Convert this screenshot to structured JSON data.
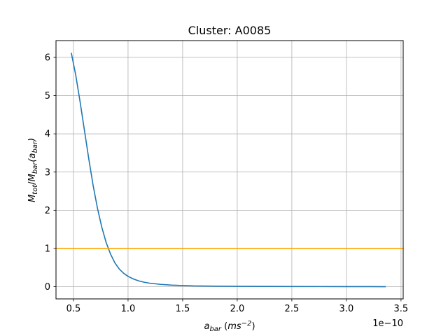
{
  "chart_data": {
    "type": "line",
    "title": "Cluster: A0085",
    "xlabel": {
      "base": "a",
      "sub": "bar",
      "unit_pre": " (",
      "unit_main": "ms",
      "unit_sup": "−2",
      "unit_post": ")"
    },
    "ylabel": {
      "m1": "M",
      "s1": "tot",
      "slash": "/",
      "m2": "M",
      "s2": "bar",
      "arg_open": "(a",
      "s3": "bar",
      "arg_close": ")"
    },
    "x_offset_text": "1e−10",
    "x_scale": 1e-10,
    "xlim": [
      0.34,
      3.52
    ],
    "ylim": [
      -0.32,
      6.44
    ],
    "xticks": [
      0.5,
      1.0,
      1.5,
      2.0,
      2.5,
      3.0,
      3.5
    ],
    "xtick_labels": [
      "0.5",
      "1.0",
      "1.5",
      "2.0",
      "2.5",
      "3.0",
      "3.5"
    ],
    "yticks": [
      0,
      1,
      2,
      3,
      4,
      5,
      6
    ],
    "ytick_labels": [
      "0",
      "1",
      "2",
      "3",
      "4",
      "5",
      "6"
    ],
    "grid": true,
    "series": [
      {
        "color": "#1f77b4",
        "x": [
          0.48,
          0.52,
          0.56,
          0.6,
          0.64,
          0.68,
          0.72,
          0.76,
          0.8,
          0.84,
          0.88,
          0.92,
          0.96,
          1.0,
          1.05,
          1.1,
          1.15,
          1.2,
          1.3,
          1.4,
          1.5,
          1.6,
          1.8,
          2.0,
          2.25,
          2.5,
          2.75,
          3.0,
          3.2,
          3.36
        ],
        "y": [
          6.12,
          5.55,
          4.85,
          4.1,
          3.35,
          2.65,
          2.05,
          1.55,
          1.15,
          0.85,
          0.62,
          0.46,
          0.35,
          0.27,
          0.2,
          0.15,
          0.115,
          0.09,
          0.06,
          0.04,
          0.03,
          0.02,
          0.013,
          0.009,
          0.006,
          0.004,
          0.003,
          0.002,
          0.001,
          0.0
        ]
      }
    ],
    "hlines": [
      {
        "y": 1,
        "color": "#ffa500"
      }
    ]
  }
}
